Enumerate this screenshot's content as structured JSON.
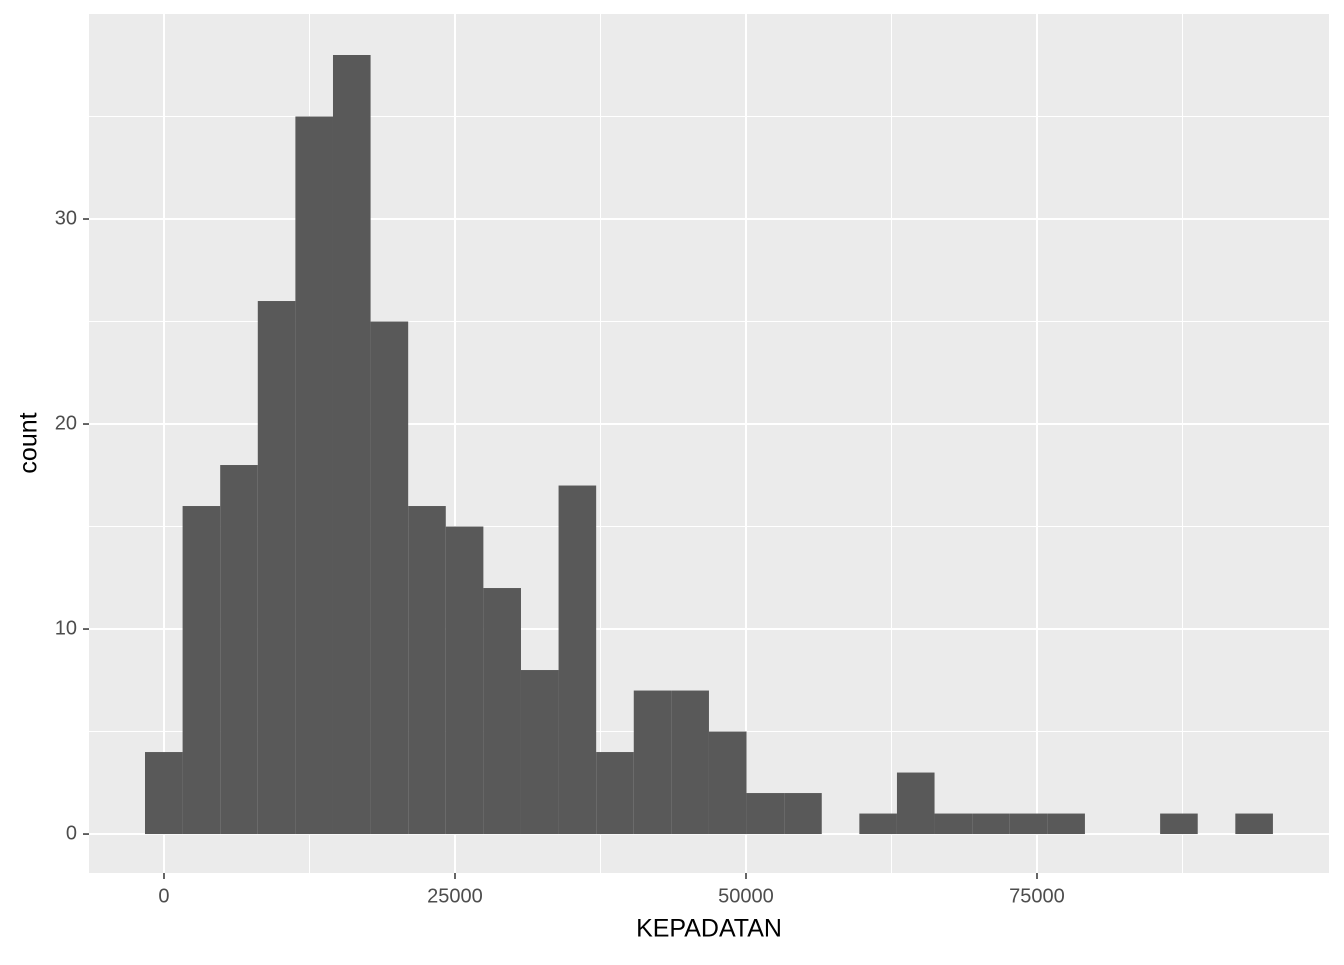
{
  "chart_data": {
    "type": "histogram",
    "x_label": "KEPADATAN",
    "y_label": "count",
    "bins": [
      -1632,
      1598,
      4828,
      8058,
      11288,
      14518,
      17748,
      20978,
      24208,
      27438,
      30668,
      33898,
      37128,
      40358,
      43588,
      46818,
      50048,
      53278,
      56508,
      59738,
      62968,
      66198,
      69428,
      72658,
      75888,
      79118,
      82348,
      85578,
      88808,
      92038,
      95268
    ],
    "values": [
      4,
      16,
      18,
      26,
      35,
      38,
      25,
      16,
      15,
      12,
      8,
      17,
      4,
      7,
      7,
      5,
      2,
      2,
      0,
      1,
      3,
      1,
      1,
      1,
      1,
      0,
      0,
      1,
      0,
      1
    ],
    "color": "#595959",
    "xlim": [
      -6443,
      100086
    ],
    "ylim": [
      -1.9,
      40
    ],
    "xticks": [
      0,
      25000,
      50000,
      75000
    ],
    "yticks": [
      0,
      10,
      20,
      30
    ],
    "x_minor_ticks": [
      12500,
      37500,
      62500,
      87500
    ],
    "y_minor_ticks": [
      5,
      15,
      25,
      35
    ],
    "grid": true
  }
}
